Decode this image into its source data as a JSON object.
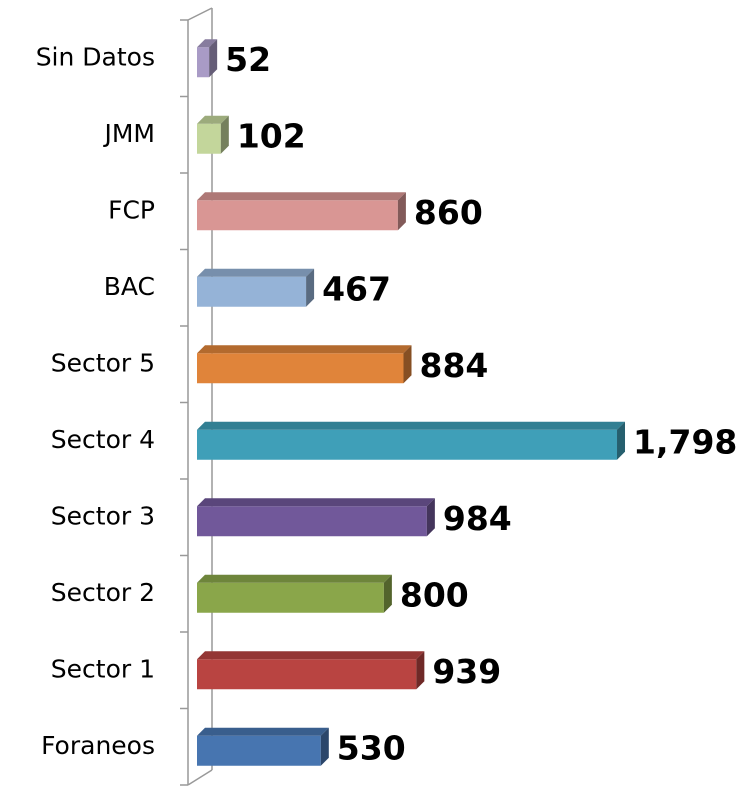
{
  "chart_data": {
    "type": "bar",
    "orientation": "horizontal",
    "categories": [
      "Sin Datos",
      "JMM",
      "FCP",
      "BAC",
      "Sector 5",
      "Sector 4",
      "Sector 3",
      "Sector 2",
      "Sector 1",
      "Foraneos"
    ],
    "values": [
      52,
      102,
      860,
      467,
      884,
      1798,
      984,
      800,
      939,
      530
    ],
    "value_labels": [
      "52",
      "102",
      "860",
      "467",
      "884",
      "1,798",
      "984",
      "800",
      "939",
      "530"
    ],
    "colors": [
      "#a99bc6",
      "#c3d69b",
      "#d99694",
      "#95b3d7",
      "#e0843a",
      "#3f9fb8",
      "#71589a",
      "#8aa64a",
      "#b94441",
      "#4775b0"
    ]
  }
}
